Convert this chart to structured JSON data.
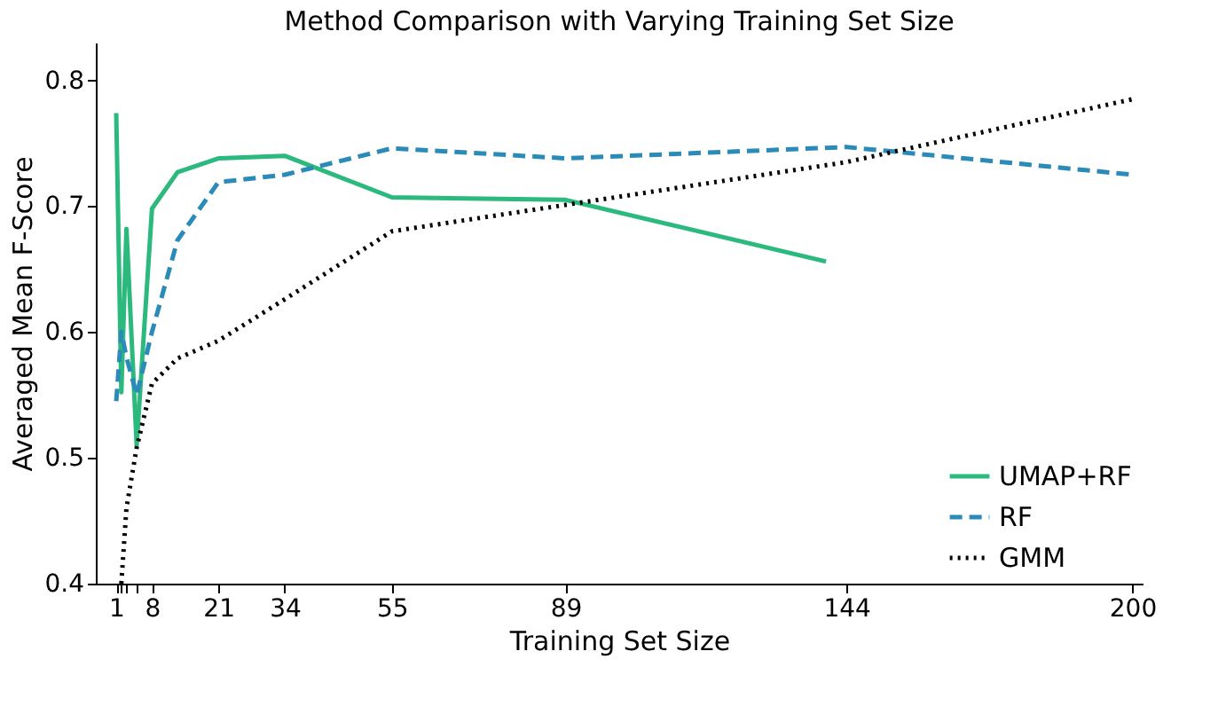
{
  "chart_data": {
    "type": "line",
    "title": "Method Comparison with Varying Training Set Size",
    "xlabel": "Training Set Size",
    "ylabel": "Averaged Mean F-Score",
    "x": [
      1,
      2,
      3,
      5,
      8,
      13,
      21,
      34,
      55,
      89,
      144,
      200
    ],
    "series": [
      {
        "name": "UMAP+RF",
        "color": "#2bb97d",
        "line_style": "solid",
        "x": [
          1,
          2,
          3,
          5,
          8,
          13,
          21,
          34,
          55,
          89,
          140
        ],
        "values": [
          0.774,
          0.552,
          0.682,
          0.51,
          0.698,
          0.727,
          0.738,
          0.74,
          0.707,
          0.705,
          0.656
        ]
      },
      {
        "name": "RF",
        "color": "#2a8ab8",
        "line_style": "dashed",
        "values": [
          0.545,
          0.6,
          0.58,
          0.55,
          0.6,
          0.673,
          0.719,
          0.725,
          0.746,
          0.738,
          0.747,
          0.725
        ]
      },
      {
        "name": "GMM",
        "color": "#000000",
        "line_style": "dotted",
        "x": [
          2,
          3,
          5,
          8,
          13,
          21,
          34,
          55,
          89,
          144,
          200
        ],
        "values": [
          0.4,
          0.46,
          0.508,
          0.559,
          0.579,
          0.593,
          0.626,
          0.68,
          0.701,
          0.735,
          0.785
        ]
      }
    ],
    "xlim": [
      -3,
      202
    ],
    "ylim": [
      0.4,
      0.83
    ],
    "xticks": [
      1,
      {
        "value": 2,
        "label": null
      },
      {
        "value": 3,
        "label": null
      },
      {
        "value": 5,
        "label": null
      },
      8,
      21,
      34,
      55,
      89,
      144,
      200
    ],
    "yticks": [
      0.4,
      0.5,
      0.6,
      0.7,
      0.8
    ],
    "grid": false,
    "legend": "bottom right",
    "marker": "none"
  }
}
